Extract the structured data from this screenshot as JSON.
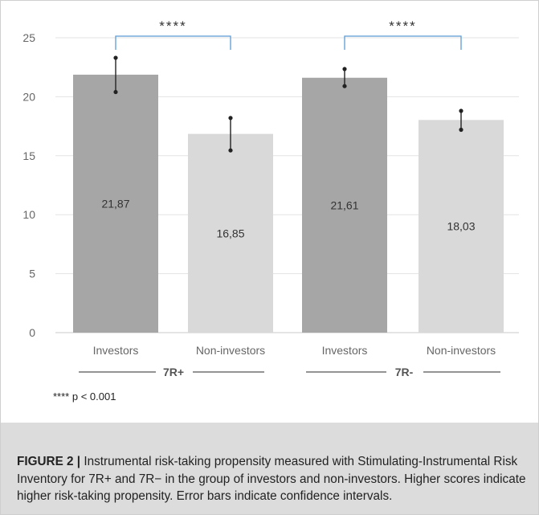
{
  "chart_data": {
    "type": "bar",
    "ylim": [
      0,
      25
    ],
    "yticks": [
      0,
      5,
      10,
      15,
      20,
      25
    ],
    "grid": true,
    "colors": {
      "investors": "#a6a6a6",
      "non_investors": "#d9d9d9",
      "bracket": "#5b9bd5",
      "grid": "#e3e3e3"
    },
    "groups": [
      {
        "label": "7R+",
        "bars": [
          {
            "category": "Investors",
            "value": 21.87,
            "value_label": "21,87",
            "err_low": 20.4,
            "err_high": 23.3
          },
          {
            "category": "Non-investors",
            "value": 16.85,
            "value_label": "16,85",
            "err_low": 15.45,
            "err_high": 18.2
          }
        ],
        "significance": "****"
      },
      {
        "label": "7R-",
        "bars": [
          {
            "category": "Investors",
            "value": 21.61,
            "value_label": "21,61",
            "err_low": 20.9,
            "err_high": 22.35
          },
          {
            "category": "Non-investors",
            "value": 18.03,
            "value_label": "18,03",
            "err_low": 17.2,
            "err_high": 18.8
          }
        ],
        "significance": "****"
      }
    ],
    "footnote": "**** p < 0.001"
  },
  "caption": {
    "label": "FIGURE 2 |",
    "text": " Instrumental risk-taking propensity measured with Stimulating-Instrumental Risk Inventory for 7R+ and 7R− in the group of investors and non-investors. Higher scores indicate higher risk-taking propensity. Error bars indicate confidence intervals."
  }
}
